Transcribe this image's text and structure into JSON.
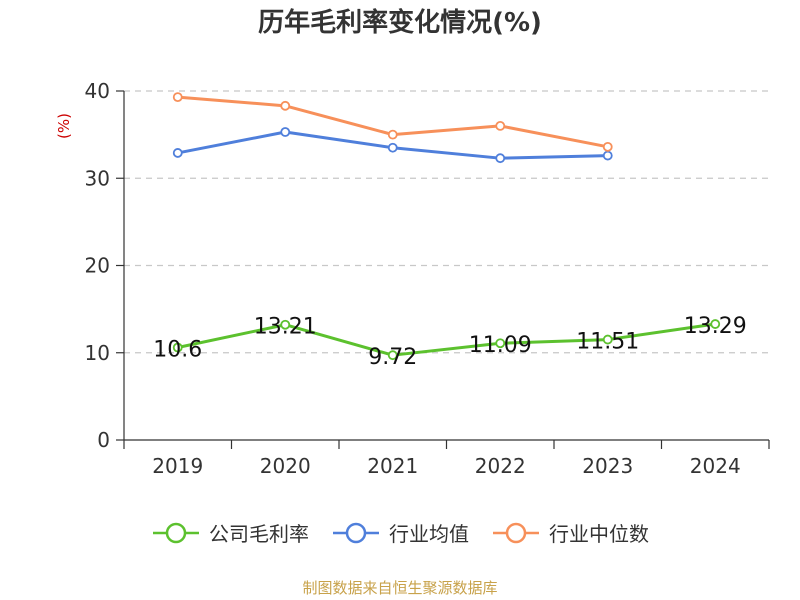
{
  "footer": {
    "source": "制图数据来自恒生聚源数据库"
  },
  "colors": {
    "company": "#5cc12e",
    "industry_avg": "#4f7fdb",
    "industry_median": "#f7905a",
    "grid": "#c8c8c8",
    "axis": "#333333",
    "ylabel": "#cc0000"
  },
  "chart_data": {
    "type": "line",
    "title": "历年毛利率变化情况(%)",
    "xlabel": "",
    "ylabel": "(%)",
    "categories": [
      "2019",
      "2020",
      "2021",
      "2022",
      "2023",
      "2024"
    ],
    "ylim": [
      0,
      40
    ],
    "yticks": [
      0,
      10,
      20,
      30,
      40
    ],
    "grid": true,
    "legend": "bottom",
    "series": [
      {
        "name": "公司毛利率",
        "color": "#5cc12e",
        "values": [
          10.6,
          13.21,
          9.72,
          11.09,
          11.51,
          13.29
        ],
        "labels": [
          "10.6",
          "13.21",
          "9.72",
          "11.09",
          "11.51",
          "13.29"
        ]
      },
      {
        "name": "行业均值",
        "color": "#4f7fdb",
        "values": [
          32.9,
          35.3,
          33.5,
          32.3,
          32.6,
          null
        ]
      },
      {
        "name": "行业中位数",
        "color": "#f7905a",
        "values": [
          39.3,
          38.3,
          35.0,
          36.0,
          33.6,
          null
        ]
      }
    ]
  }
}
